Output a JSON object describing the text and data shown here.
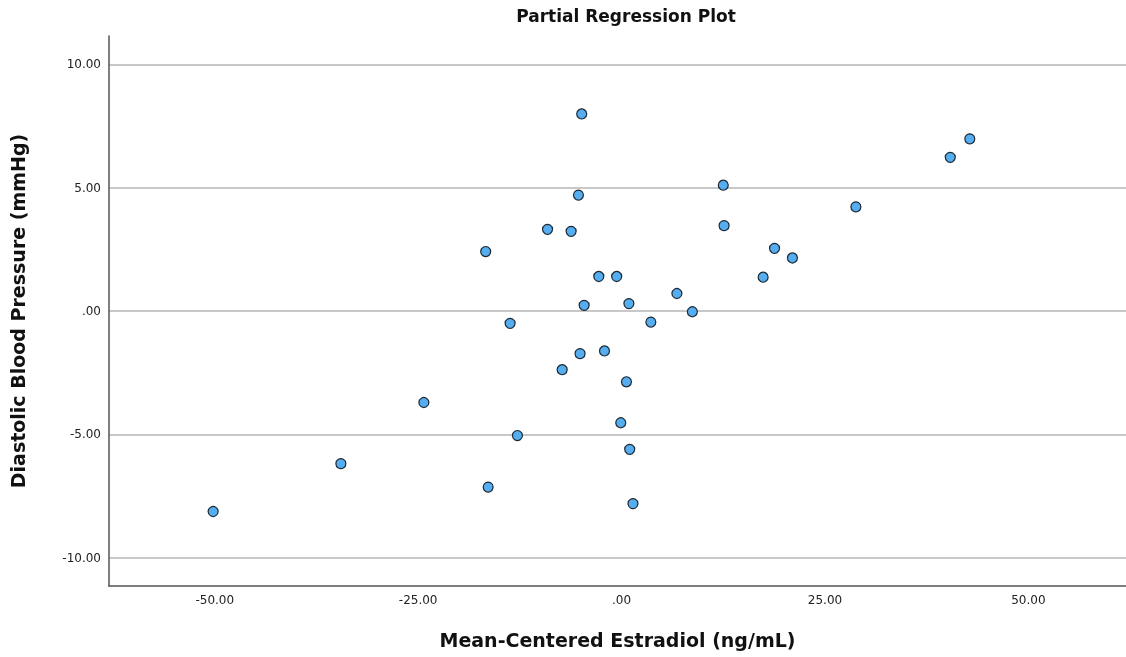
{
  "chart_data": {
    "type": "scatter",
    "title": "Partial Regression Plot",
    "xlabel": "Mean-Centered Estradiol (ng/mL)",
    "ylabel": "Diastolic Blood Pressure (mmHg)",
    "x": [
      -50.2,
      -34.5,
      -24.3,
      -16.7,
      -13.7,
      -16.4,
      -12.8,
      -4.9,
      -5.3,
      -9.1,
      -6.2,
      12.5,
      12.6,
      18.8,
      21.0,
      17.4,
      -2.8,
      -0.6,
      6.8,
      -4.6,
      0.9,
      8.7,
      3.6,
      -2.1,
      -5.1,
      -7.3,
      0.6,
      -0.1,
      1.0,
      1.4,
      28.8,
      40.4,
      42.8
    ],
    "values": [
      -8.13,
      -6.19,
      -3.71,
      2.41,
      -0.5,
      -7.14,
      -5.05,
      7.99,
      4.7,
      3.31,
      3.23,
      5.1,
      3.46,
      2.54,
      2.15,
      1.37,
      1.4,
      1.4,
      0.71,
      0.23,
      0.3,
      -0.03,
      -0.45,
      -1.62,
      -1.73,
      -2.38,
      -2.87,
      -4.53,
      -5.61,
      -7.81,
      4.22,
      6.23,
      6.98
    ],
    "color": "#56aef0",
    "marker": "circle",
    "grid": "y",
    "xlim": [
      -63,
      62
    ],
    "xticks": [
      {
        "value": -50,
        "label": "-50.00"
      },
      {
        "value": -25,
        "label": "-25.00"
      },
      {
        "value": 0,
        "label": ".00"
      },
      {
        "value": 25,
        "label": "25.00"
      },
      {
        "value": 50,
        "label": "50.00"
      }
    ],
    "ylim": [
      -11.15,
      11.15
    ],
    "yticks": [
      {
        "value": -10,
        "label": "-10.00"
      },
      {
        "value": -5,
        "label": "-5.00"
      },
      {
        "value": 0,
        "label": ".00"
      },
      {
        "value": 5,
        "label": "5.00"
      },
      {
        "value": 10,
        "label": "10.00"
      }
    ]
  }
}
